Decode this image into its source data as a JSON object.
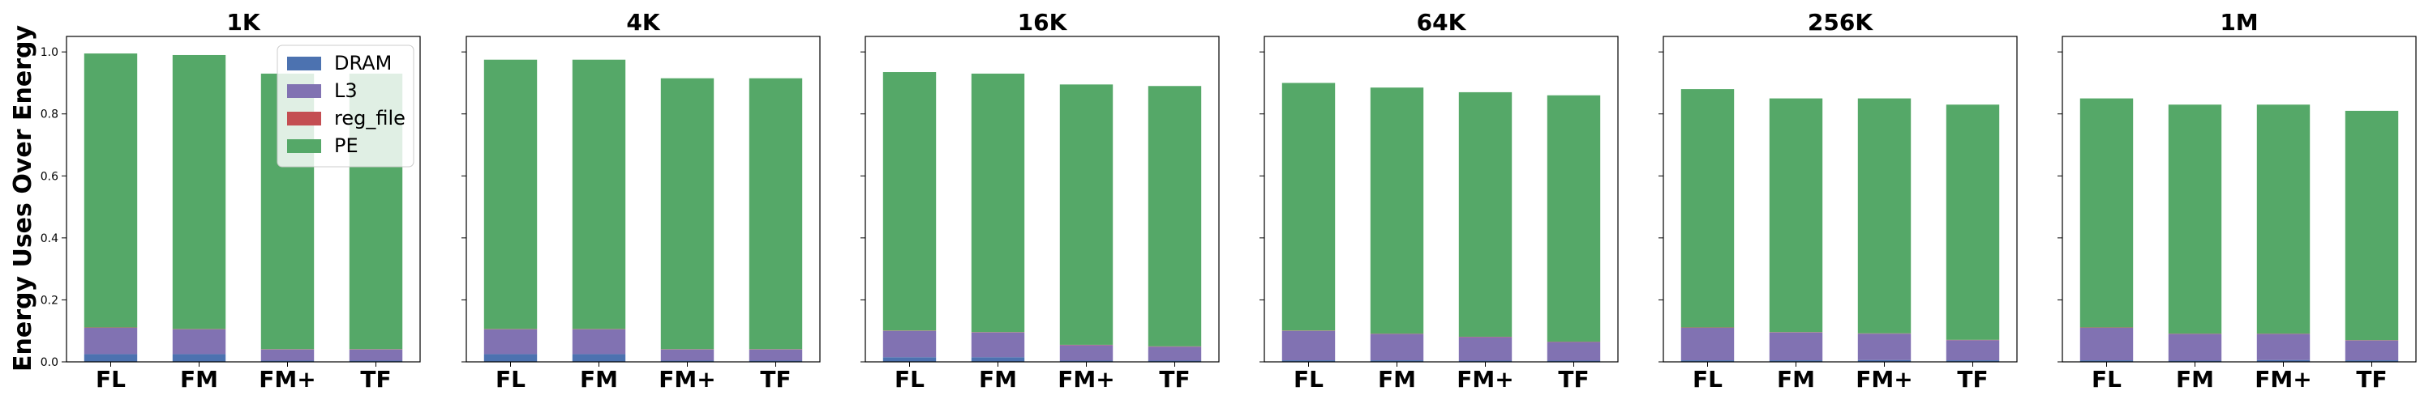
{
  "chart_data": {
    "type": "bar",
    "stacked": true,
    "ylabel": "Energy Uses Over Energy",
    "ylim": [
      0,
      1.05
    ],
    "yticks": [
      "0.0",
      "0.2",
      "0.4",
      "0.6",
      "0.8",
      "1.0"
    ],
    "grid": false,
    "categories": [
      "FL",
      "FM",
      "FM+",
      "TF"
    ],
    "legend": {
      "placement": "upper-right of first panel",
      "entries": [
        "DRAM",
        "L3",
        "reg_file",
        "PE"
      ]
    },
    "colors": {
      "DRAM": "#4c72b0",
      "L3": "#8172b2",
      "reg_file": "#c44e52",
      "PE": "#55a868"
    },
    "panels": [
      {
        "title": "1K",
        "series": [
          {
            "name": "DRAM",
            "values": [
              0.025,
              0.025,
              0.004,
              0.004
            ]
          },
          {
            "name": "L3",
            "values": [
              0.085,
              0.08,
              0.036,
              0.036
            ]
          },
          {
            "name": "reg_file",
            "values": [
              0.001,
              0.001,
              0.001,
              0.001
            ]
          },
          {
            "name": "PE",
            "values": [
              0.884,
              0.884,
              0.889,
              0.889
            ]
          }
        ]
      },
      {
        "title": "4K",
        "series": [
          {
            "name": "DRAM",
            "values": [
              0.025,
              0.025,
              0.004,
              0.004
            ]
          },
          {
            "name": "L3",
            "values": [
              0.08,
              0.08,
              0.036,
              0.036
            ]
          },
          {
            "name": "reg_file",
            "values": [
              0.001,
              0.001,
              0.001,
              0.001
            ]
          },
          {
            "name": "PE",
            "values": [
              0.869,
              0.869,
              0.874,
              0.874
            ]
          }
        ]
      },
      {
        "title": "16K",
        "series": [
          {
            "name": "DRAM",
            "values": [
              0.015,
              0.015,
              0.004,
              0.004
            ]
          },
          {
            "name": "L3",
            "values": [
              0.085,
              0.08,
              0.05,
              0.045
            ]
          },
          {
            "name": "reg_file",
            "values": [
              0.001,
              0.001,
              0.001,
              0.001
            ]
          },
          {
            "name": "PE",
            "values": [
              0.834,
              0.834,
              0.84,
              0.84
            ]
          }
        ]
      },
      {
        "title": "64K",
        "series": [
          {
            "name": "DRAM",
            "values": [
              0.005,
              0.005,
              0.004,
              0.004
            ]
          },
          {
            "name": "L3",
            "values": [
              0.095,
              0.085,
              0.076,
              0.06
            ]
          },
          {
            "name": "reg_file",
            "values": [
              0.001,
              0.001,
              0.001,
              0.001
            ]
          },
          {
            "name": "PE",
            "values": [
              0.799,
              0.794,
              0.789,
              0.795
            ]
          }
        ]
      },
      {
        "title": "256K",
        "series": [
          {
            "name": "DRAM",
            "values": [
              0.005,
              0.005,
              0.006,
              0.005
            ]
          },
          {
            "name": "L3",
            "values": [
              0.105,
              0.09,
              0.085,
              0.065
            ]
          },
          {
            "name": "reg_file",
            "values": [
              0.001,
              0.001,
              0.001,
              0.001
            ]
          },
          {
            "name": "PE",
            "values": [
              0.769,
              0.754,
              0.758,
              0.759
            ]
          }
        ]
      },
      {
        "title": "1M",
        "series": [
          {
            "name": "DRAM",
            "values": [
              0.005,
              0.004,
              0.006,
              0.005
            ]
          },
          {
            "name": "L3",
            "values": [
              0.105,
              0.086,
              0.084,
              0.064
            ]
          },
          {
            "name": "reg_file",
            "values": [
              0.001,
              0.001,
              0.001,
              0.001
            ]
          },
          {
            "name": "PE",
            "values": [
              0.739,
              0.739,
              0.739,
              0.74
            ]
          }
        ]
      }
    ]
  }
}
